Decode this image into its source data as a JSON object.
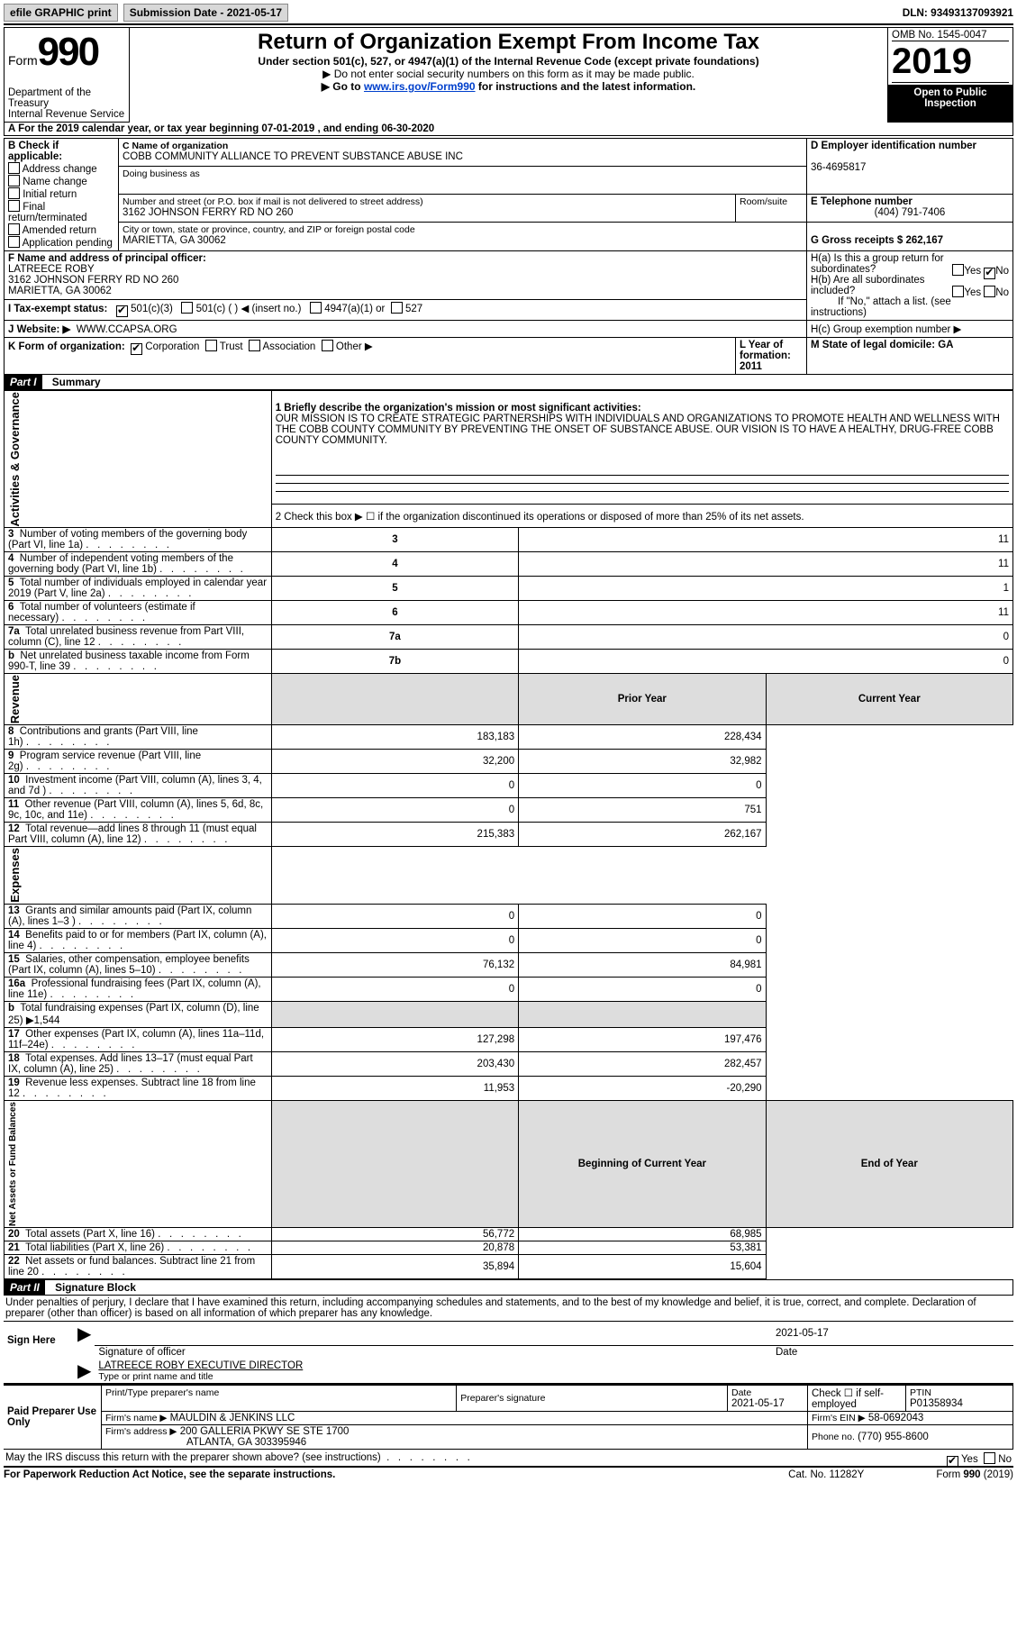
{
  "topbar": {
    "efile": "efile GRAPHIC print",
    "submission_label": "Submission Date - 2021-05-17",
    "dln": "DLN: 93493137093921"
  },
  "header": {
    "form_word": "Form",
    "form_num": "990",
    "dept1": "Department of the Treasury",
    "dept2": "Internal Revenue Service",
    "title": "Return of Organization Exempt From Income Tax",
    "subtitle": "Under section 501(c), 527, or 4947(a)(1) of the Internal Revenue Code (except private foundations)",
    "note1": "▶ Do not enter social security numbers on this form as it may be made public.",
    "note2a": "▶ Go to ",
    "note2_link": "www.irs.gov/Form990",
    "note2b": " for instructions and the latest information.",
    "omb": "OMB No. 1545-0047",
    "year": "2019",
    "open": "Open to Public Inspection"
  },
  "period": "A For the 2019 calendar year, or tax year beginning 07-01-2019   , and ending 06-30-2020",
  "boxB": {
    "label": "B Check if applicable:",
    "items": [
      "Address change",
      "Name change",
      "Initial return",
      "Final return/terminated",
      "Amended return",
      "Application pending"
    ]
  },
  "boxC": {
    "label": "C Name of organization",
    "name": "COBB COMMUNITY ALLIANCE TO PREVENT SUBSTANCE ABUSE INC",
    "dba": "Doing business as",
    "street_label": "Number and street (or P.O. box if mail is not delivered to street address)",
    "room": "Room/suite",
    "street": "3162 JOHNSON FERRY RD NO 260",
    "city_label": "City or town, state or province, country, and ZIP or foreign postal code",
    "city": "MARIETTA, GA  30062"
  },
  "boxD": {
    "label": "D Employer identification number",
    "value": "36-4695817"
  },
  "boxE": {
    "label": "E Telephone number",
    "value": "(404) 791-7406"
  },
  "boxG": {
    "label": "G Gross receipts $ 262,167"
  },
  "boxF": {
    "label": "F Name and address of principal officer:",
    "name": "LATREECE ROBY",
    "addr1": "3162 JOHNSON FERRY RD NO 260",
    "addr2": "MARIETTA, GA  30062"
  },
  "boxH": {
    "a_label": "H(a)  Is this a group return for subordinates?",
    "a_yes": "Yes",
    "a_no": "No",
    "b_label": "H(b)  Are all subordinates included?",
    "b_note": "If \"No,\" attach a list. (see instructions)",
    "c_label": "H(c)  Group exemption number ▶"
  },
  "taxexempt": {
    "label": "I   Tax-exempt status:",
    "c3": "501(c)(3)",
    "c_blank": "501(c) (  ) ◀ (insert no.)",
    "t4947": "4947(a)(1) or",
    "t527": "527"
  },
  "website": {
    "label": "J   Website: ▶",
    "value": "WWW.CCAPSA.ORG"
  },
  "boxK": {
    "label": "K Form of organization:",
    "corp": "Corporation",
    "trust": "Trust",
    "assoc": "Association",
    "other": "Other ▶"
  },
  "boxL": "L Year of formation: 2011",
  "boxM": "M State of legal domicile: GA",
  "part1": {
    "header": "Part I",
    "title": "Summary",
    "line1_label": "1  Briefly describe the organization's mission or most significant activities:",
    "line1_text": "OUR MISSION IS TO CREATE STRATEGIC PARTNERSHIPS WITH INDIVIDUALS AND ORGANIZATIONS TO PROMOTE HEALTH AND WELLNESS WITH THE COBB COUNTY COMMUNITY BY PREVENTING THE ONSET OF SUBSTANCE ABUSE. OUR VISION IS TO HAVE A HEALTHY, DRUG-FREE COBB COUNTY COMMUNITY.",
    "line2": "2   Check this box ▶ ☐  if the organization discontinued its operations or disposed of more than 25% of its net assets.",
    "gov_rows": [
      {
        "n": "3",
        "t": "Number of voting members of the governing body (Part VI, line 1a)",
        "ln": "3",
        "v": "11"
      },
      {
        "n": "4",
        "t": "Number of independent voting members of the governing body (Part VI, line 1b)",
        "ln": "4",
        "v": "11"
      },
      {
        "n": "5",
        "t": "Total number of individuals employed in calendar year 2019 (Part V, line 2a)",
        "ln": "5",
        "v": "1"
      },
      {
        "n": "6",
        "t": "Total number of volunteers (estimate if necessary)",
        "ln": "6",
        "v": "11"
      },
      {
        "n": "7a",
        "t": "Total unrelated business revenue from Part VIII, column (C), line 12",
        "ln": "7a",
        "v": "0"
      },
      {
        "n": "b",
        "t": "Net unrelated business taxable income from Form 990-T, line 39",
        "ln": "7b",
        "v": "0"
      }
    ],
    "col_prior": "Prior Year",
    "col_curr": "Current Year",
    "revenue_rows": [
      {
        "n": "8",
        "t": "Contributions and grants (Part VIII, line 1h)",
        "p": "183,183",
        "c": "228,434"
      },
      {
        "n": "9",
        "t": "Program service revenue (Part VIII, line 2g)",
        "p": "32,200",
        "c": "32,982"
      },
      {
        "n": "10",
        "t": "Investment income (Part VIII, column (A), lines 3, 4, and 7d )",
        "p": "0",
        "c": "0"
      },
      {
        "n": "11",
        "t": "Other revenue (Part VIII, column (A), lines 5, 6d, 8c, 9c, 10c, and 11e)",
        "p": "0",
        "c": "751"
      },
      {
        "n": "12",
        "t": "Total revenue—add lines 8 through 11 (must equal Part VIII, column (A), line 12)",
        "p": "215,383",
        "c": "262,167"
      }
    ],
    "expense_rows": [
      {
        "n": "13",
        "t": "Grants and similar amounts paid (Part IX, column (A), lines 1–3 )",
        "p": "0",
        "c": "0"
      },
      {
        "n": "14",
        "t": "Benefits paid to or for members (Part IX, column (A), line 4)",
        "p": "0",
        "c": "0"
      },
      {
        "n": "15",
        "t": "Salaries, other compensation, employee benefits (Part IX, column (A), lines 5–10)",
        "p": "76,132",
        "c": "84,981"
      },
      {
        "n": "16a",
        "t": "Professional fundraising fees (Part IX, column (A), line 11e)",
        "p": "0",
        "c": "0"
      },
      {
        "n": "b",
        "t": "Total fundraising expenses (Part IX, column (D), line 25) ▶1,544",
        "p": "",
        "c": "",
        "shade": true
      },
      {
        "n": "17",
        "t": "Other expenses (Part IX, column (A), lines 11a–11d, 11f–24e)",
        "p": "127,298",
        "c": "197,476"
      },
      {
        "n": "18",
        "t": "Total expenses. Add lines 13–17 (must equal Part IX, column (A), line 25)",
        "p": "203,430",
        "c": "282,457"
      },
      {
        "n": "19",
        "t": "Revenue less expenses. Subtract line 18 from line 12",
        "p": "11,953",
        "c": "-20,290"
      }
    ],
    "col_beg": "Beginning of Current Year",
    "col_end": "End of Year",
    "net_rows": [
      {
        "n": "20",
        "t": "Total assets (Part X, line 16)",
        "p": "56,772",
        "c": "68,985"
      },
      {
        "n": "21",
        "t": "Total liabilities (Part X, line 26)",
        "p": "20,878",
        "c": "53,381"
      },
      {
        "n": "22",
        "t": "Net assets or fund balances. Subtract line 21 from line 20",
        "p": "35,894",
        "c": "15,604"
      }
    ],
    "vert_gov": "Activities & Governance",
    "vert_rev": "Revenue",
    "vert_exp": "Expenses",
    "vert_net": "Net Assets or Fund Balances"
  },
  "part2": {
    "header": "Part II",
    "title": "Signature Block",
    "decl": "Under penalties of perjury, I declare that I have examined this return, including accompanying schedules and statements, and to the best of my knowledge and belief, it is true, correct, and complete. Declaration of preparer (other than officer) is based on all information of which preparer has any knowledge.",
    "sign_here": "Sign Here",
    "sig_officer": "Signature of officer",
    "sig_date": "2021-05-17",
    "date_label": "Date",
    "officer_name": "LATREECE ROBY  EXECUTIVE DIRECTOR",
    "officer_type": "Type or print name and title",
    "paid": "Paid Preparer Use Only",
    "prep_name_label": "Print/Type preparer's name",
    "prep_sig_label": "Preparer's signature",
    "prep_date_label": "Date",
    "prep_date": "2021-05-17",
    "check_if": "Check ☐ if self-employed",
    "ptin_label": "PTIN",
    "ptin": "P01358934",
    "firm_name_label": "Firm's name    ▶",
    "firm_name": "MAULDIN & JENKINS LLC",
    "firm_ein_label": "Firm's EIN ▶",
    "firm_ein": "58-0692043",
    "firm_addr_label": "Firm's address ▶",
    "firm_addr1": "200 GALLERIA PKWY SE STE 1700",
    "firm_addr2": "ATLANTA, GA  303395946",
    "phone_label": "Phone no.",
    "phone": "(770) 955-8600",
    "discuss": "May the IRS discuss this return with the preparer shown above? (see instructions)",
    "yes": "Yes",
    "no": "No"
  },
  "footer": {
    "left": "For Paperwork Reduction Act Notice, see the separate instructions.",
    "mid": "Cat. No. 11282Y",
    "right": "Form 990 (2019)"
  }
}
